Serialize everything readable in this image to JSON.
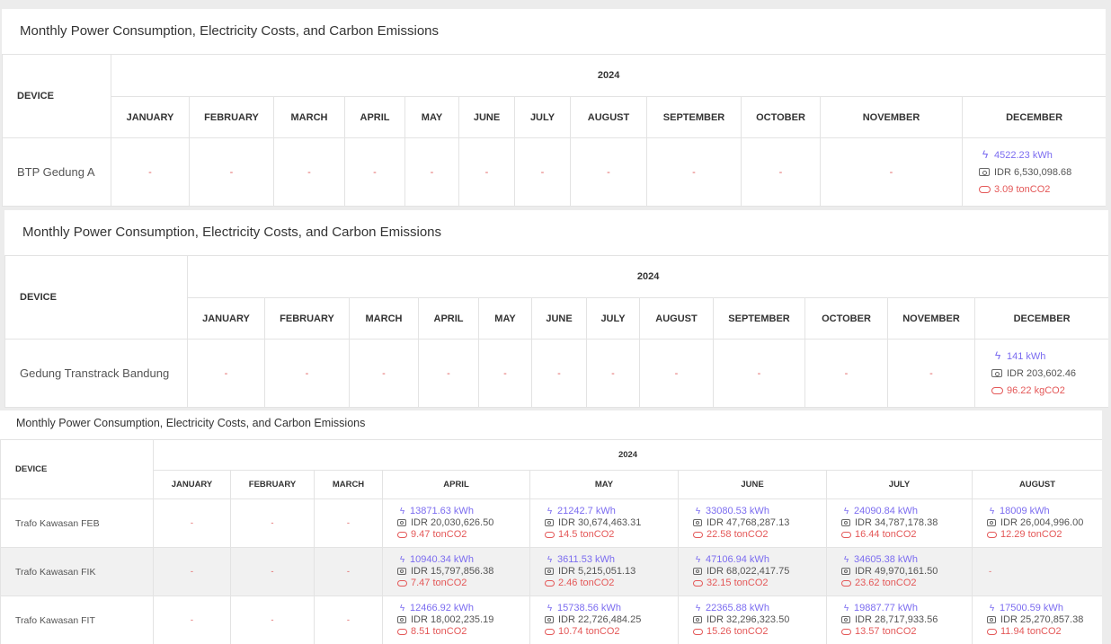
{
  "panel1": {
    "title": "Monthly Power Consumption, Electricity Costs, and Carbon Emissions",
    "device_header": "DEVICE",
    "year": "2024",
    "months": [
      "JANUARY",
      "FEBRUARY",
      "MARCH",
      "APRIL",
      "MAY",
      "JUNE",
      "JULY",
      "AUGUST",
      "SEPTEMBER",
      "OCTOBER",
      "NOVEMBER",
      "DECEMBER"
    ],
    "device": "BTP Gedung A",
    "dash": "-",
    "dec": {
      "kwh": "4522.23 kWh",
      "idr": "IDR 6,530,098.68",
      "co2": "3.09 tonCO2"
    }
  },
  "panel2": {
    "title": "Monthly Power Consumption, Electricity Costs, and Carbon Emissions",
    "device_header": "DEVICE",
    "year": "2024",
    "months": [
      "JANUARY",
      "FEBRUARY",
      "MARCH",
      "APRIL",
      "MAY",
      "JUNE",
      "JULY",
      "AUGUST",
      "SEPTEMBER",
      "OCTOBER",
      "NOVEMBER",
      "DECEMBER"
    ],
    "device": "Gedung Transtrack Bandung",
    "dash": "-",
    "dec": {
      "kwh": "141 kWh",
      "idr": "IDR 203,602.46",
      "co2": "96.22 kgCO2"
    }
  },
  "panel3": {
    "title": "Monthly Power Consumption, Electricity Costs, and Carbon Emissions",
    "device_header": "DEVICE",
    "year": "2024",
    "months": [
      "JANUARY",
      "FEBRUARY",
      "MARCH",
      "APRIL",
      "MAY",
      "JUNE",
      "JULY",
      "AUGUST"
    ],
    "dash": "-",
    "rows": [
      {
        "device": "Trafo Kawasan FEB",
        "apr": {
          "kwh": "13871.63 kWh",
          "idr": "IDR 20,030,626.50",
          "co2": "9.47 tonCO2"
        },
        "may": {
          "kwh": "21242.7 kWh",
          "idr": "IDR 30,674,463.31",
          "co2": "14.5 tonCO2"
        },
        "jun": {
          "kwh": "33080.53 kWh",
          "idr": "IDR 47,768,287.13",
          "co2": "22.58 tonCO2"
        },
        "jul": {
          "kwh": "24090.84 kWh",
          "idr": "IDR 34,787,178.38",
          "co2": "16.44 tonCO2"
        },
        "aug": {
          "kwh": "18009 kWh",
          "idr": "IDR 26,004,996.00",
          "co2": "12.29 tonCO2"
        }
      },
      {
        "device": "Trafo Kawasan FIK",
        "apr": {
          "kwh": "10940.34 kWh",
          "idr": "IDR 15,797,856.38",
          "co2": "7.47 tonCO2"
        },
        "may": {
          "kwh": "3611.53 kWh",
          "idr": "IDR 5,215,051.13",
          "co2": "2.46 tonCO2"
        },
        "jun": {
          "kwh": "47106.94 kWh",
          "idr": "IDR 68,022,417.75",
          "co2": "32.15 tonCO2"
        },
        "jul": {
          "kwh": "34605.38 kWh",
          "idr": "IDR 49,970,161.50",
          "co2": "23.62 tonCO2"
        },
        "aug_dash": "-"
      },
      {
        "device": "Trafo Kawasan FIT",
        "apr": {
          "kwh": "12466.92 kWh",
          "idr": "IDR 18,002,235.19",
          "co2": "8.51 tonCO2"
        },
        "may": {
          "kwh": "15738.56 kWh",
          "idr": "IDR 22,726,484.25",
          "co2": "10.74 tonCO2"
        },
        "jun": {
          "kwh": "22365.88 kWh",
          "idr": "IDR 32,296,323.50",
          "co2": "15.26 tonCO2"
        },
        "jul": {
          "kwh": "19887.77 kWh",
          "idr": "IDR 28,717,933.56",
          "co2": "13.57 tonCO2"
        },
        "aug": {
          "kwh": "17500.59 kWh",
          "idr": "IDR 25,270,857.38",
          "co2": "11.94 tonCO2"
        }
      }
    ]
  }
}
